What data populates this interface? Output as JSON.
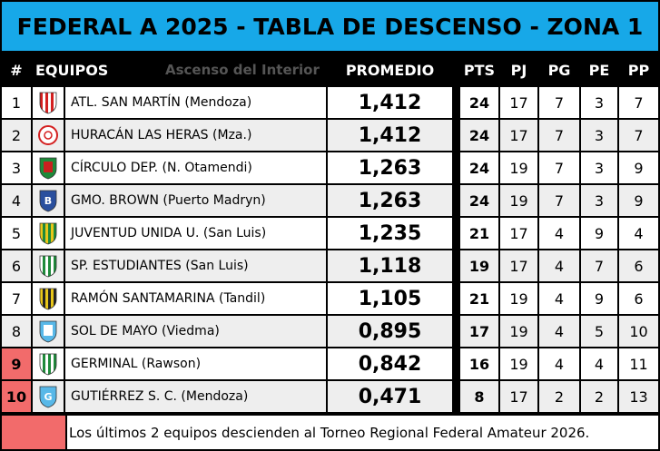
{
  "title": "FEDERAL A 2025 - TABLA DE DESCENSO - ZONA 1",
  "header": {
    "rank": "#",
    "teams": "EQUIPOS",
    "watermark": "Ascenso del Interior",
    "promedio": "PROMEDIO",
    "pts": "PTS",
    "pj": "PJ",
    "pg": "PG",
    "pe": "PE",
    "pp": "PP"
  },
  "rows": [
    {
      "rank": "1",
      "team": "ATL. SAN MARTÍN (Mendoza)",
      "promedio": "1,412",
      "pts": "24",
      "pj": "17",
      "pg": "7",
      "pe": "3",
      "pp": "7",
      "crest": "san-martin-mendoza-crest-icon",
      "relegated": false
    },
    {
      "rank": "2",
      "team": "HURACÁN LAS HERAS (Mza.)",
      "promedio": "1,412",
      "pts": "24",
      "pj": "17",
      "pg": "7",
      "pe": "3",
      "pp": "7",
      "crest": "huracan-las-heras-crest-icon",
      "relegated": false
    },
    {
      "rank": "3",
      "team": "CÍRCULO DEP. (N. Otamendi)",
      "promedio": "1,263",
      "pts": "24",
      "pj": "19",
      "pg": "7",
      "pe": "3",
      "pp": "9",
      "crest": "circulo-deportivo-crest-icon",
      "relegated": false
    },
    {
      "rank": "4",
      "team": "GMO. BROWN (Puerto Madryn)",
      "promedio": "1,263",
      "pts": "24",
      "pj": "19",
      "pg": "7",
      "pe": "3",
      "pp": "9",
      "crest": "guillermo-brown-crest-icon",
      "relegated": false
    },
    {
      "rank": "5",
      "team": "JUVENTUD UNIDA U. (San Luis)",
      "promedio": "1,235",
      "pts": "21",
      "pj": "17",
      "pg": "4",
      "pe": "9",
      "pp": "4",
      "crest": "juventud-unida-crest-icon",
      "relegated": false
    },
    {
      "rank": "6",
      "team": "SP. ESTUDIANTES (San Luis)",
      "promedio": "1,118",
      "pts": "19",
      "pj": "17",
      "pg": "4",
      "pe": "7",
      "pp": "6",
      "crest": "sportivo-estudiantes-crest-icon",
      "relegated": false
    },
    {
      "rank": "7",
      "team": "RAMÓN SANTAMARINA (Tandil)",
      "promedio": "1,105",
      "pts": "21",
      "pj": "19",
      "pg": "4",
      "pe": "9",
      "pp": "6",
      "crest": "santamarina-crest-icon",
      "relegated": false
    },
    {
      "rank": "8",
      "team": "SOL DE MAYO (Viedma)",
      "promedio": "0,895",
      "pts": "17",
      "pj": "19",
      "pg": "4",
      "pe": "5",
      "pp": "10",
      "crest": "sol-de-mayo-crest-icon",
      "relegated": false
    },
    {
      "rank": "9",
      "team": "GERMINAL (Rawson)",
      "promedio": "0,842",
      "pts": "16",
      "pj": "19",
      "pg": "4",
      "pe": "4",
      "pp": "11",
      "crest": "germinal-crest-icon",
      "relegated": true
    },
    {
      "rank": "10",
      "team": "GUTIÉRREZ S. C. (Mendoza)",
      "promedio": "0,471",
      "pts": "8",
      "pj": "17",
      "pg": "2",
      "pe": "2",
      "pp": "13",
      "crest": "gutierrez-crest-icon",
      "relegated": true
    }
  ],
  "footer": {
    "note": "Los últimos 2 equipos descienden al Torneo Regional Federal Amateur 2026."
  },
  "colors": {
    "title_bg": "#17a8e8",
    "row_even": "#ffffff",
    "row_odd": "#eeeeee",
    "relegation": "#f26b6b"
  }
}
